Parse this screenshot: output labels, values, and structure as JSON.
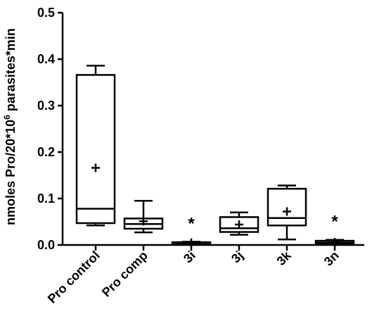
{
  "chart_data": {
    "type": "box",
    "ylabel_main": "nmoles Pro/20*10",
    "ylabel_sup": "6",
    "ylabel_tail": " parasites*min",
    "ylim": [
      0,
      0.5
    ],
    "y_ticks": [
      0.0,
      0.1,
      0.2,
      0.3,
      0.4,
      0.5
    ],
    "y_tick_labels": [
      "0.0",
      "0.1",
      "0.2",
      "0.3",
      "0.4",
      "0.5"
    ],
    "categories": [
      "Pro control",
      "Pro comp",
      "3i",
      "3j",
      "3k",
      "3n"
    ],
    "boxes": [
      {
        "min": 0.042,
        "q1": 0.047,
        "median": 0.078,
        "q3": 0.366,
        "max": 0.386,
        "mean": 0.166,
        "annotation": ""
      },
      {
        "min": 0.027,
        "q1": 0.035,
        "median": 0.045,
        "q3": 0.057,
        "max": 0.095,
        "mean": 0.051,
        "annotation": ""
      },
      {
        "min": 0.003,
        "q1": 0.004,
        "median": 0.005,
        "q3": 0.006,
        "max": 0.007,
        "mean": 0.005,
        "annotation": "*"
      },
      {
        "min": 0.022,
        "q1": 0.028,
        "median": 0.036,
        "q3": 0.06,
        "max": 0.07,
        "mean": 0.044,
        "annotation": ""
      },
      {
        "min": 0.012,
        "q1": 0.042,
        "median": 0.058,
        "q3": 0.121,
        "max": 0.128,
        "mean": 0.072,
        "annotation": ""
      },
      {
        "min": 0.002,
        "q1": 0.003,
        "median": 0.005,
        "q3": 0.009,
        "max": 0.011,
        "mean": 0.006,
        "annotation": "*"
      }
    ]
  }
}
